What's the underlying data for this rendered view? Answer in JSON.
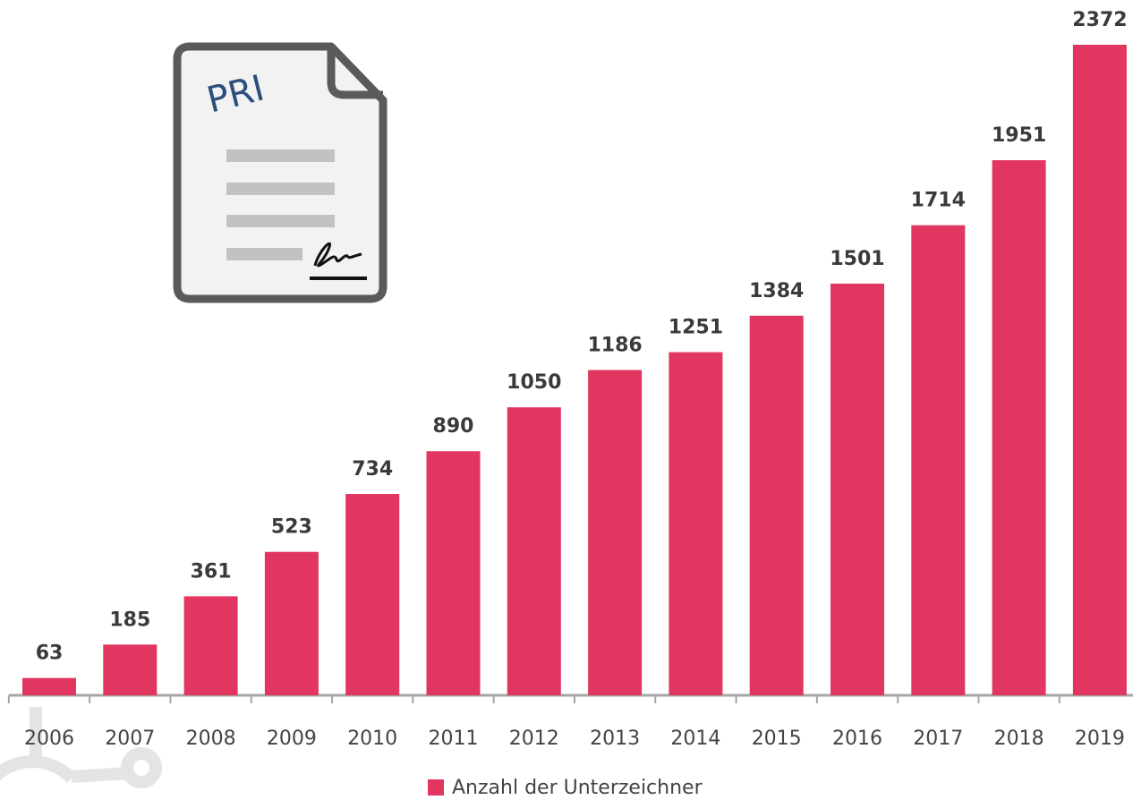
{
  "chart_data": {
    "type": "bar",
    "categories": [
      "2006",
      "2007",
      "2008",
      "2009",
      "2010",
      "2011",
      "2012",
      "2013",
      "2014",
      "2015",
      "2016",
      "2017",
      "2018",
      "2019"
    ],
    "series": [
      {
        "name": "Anzahl der Unterzeichner",
        "color": "#e0365f",
        "values": [
          63,
          185,
          361,
          523,
          734,
          890,
          1050,
          1186,
          1251,
          1384,
          1501,
          1714,
          1951,
          2372
        ]
      }
    ],
    "data_labels": true,
    "legend": "bottom"
  },
  "icon": {
    "label": "PRI"
  }
}
